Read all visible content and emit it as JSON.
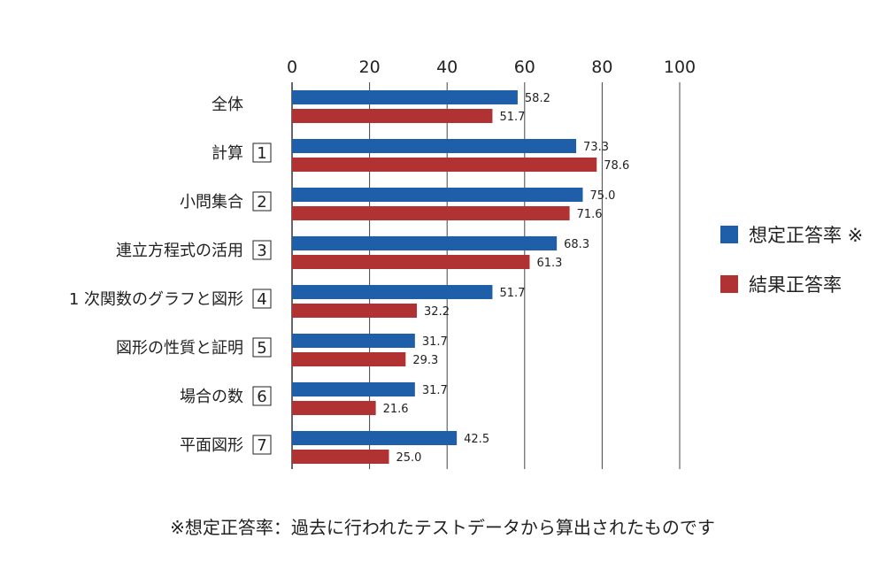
{
  "chart_data": {
    "type": "bar",
    "orientation": "horizontal",
    "title": "",
    "xlabel": "",
    "ylabel": "",
    "xlim": [
      0,
      100
    ],
    "x_ticks": [
      0,
      20,
      40,
      60,
      80,
      100
    ],
    "grid": true,
    "legend_position": "right",
    "categories": [
      {
        "label": "全体",
        "number": ""
      },
      {
        "label": "計算",
        "number": "1"
      },
      {
        "label": "小問集合",
        "number": "2"
      },
      {
        "label": "連立方程式の活用",
        "number": "3"
      },
      {
        "label": "1 次関数のグラフと図形",
        "number": "4"
      },
      {
        "label": "図形の性質と証明",
        "number": "5"
      },
      {
        "label": "場合の数",
        "number": "6"
      },
      {
        "label": "平面図形",
        "number": "7"
      }
    ],
    "series": [
      {
        "name": "想定正答率 ※",
        "color": "#1f5ea8",
        "values": [
          58.2,
          73.3,
          75.0,
          68.3,
          51.7,
          31.7,
          31.7,
          42.5
        ],
        "labels": [
          "58.2",
          "73.3",
          "75.0",
          "68.3",
          "51.7",
          "31.7",
          "31.7",
          "42.5"
        ]
      },
      {
        "name": "結果正答率",
        "color": "#b03232",
        "values": [
          51.7,
          78.6,
          71.6,
          61.3,
          32.2,
          29.3,
          21.6,
          25.0
        ],
        "labels": [
          "51.7",
          "78.6",
          "71.6",
          "61.3",
          "32.2",
          "29.3",
          "21.6",
          "25.0"
        ]
      }
    ]
  },
  "footnote": "※想定正答率：過去に行われたテストデータから算出されたものです"
}
